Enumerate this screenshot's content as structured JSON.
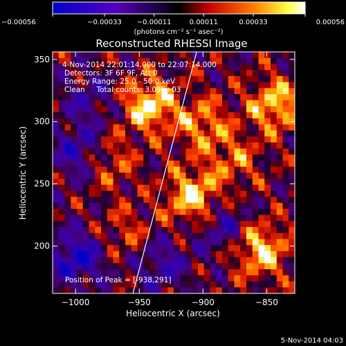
{
  "chart_data": {
    "type": "heatmap",
    "title": "Reconstructed RHESSI Image",
    "xlabel": "Heliocentric X (arcsec)",
    "ylabel": "Heliocentric Y (arcsec)",
    "xlim": [
      -1018,
      -828
    ],
    "ylim": [
      162,
      356
    ],
    "x_ticks": [
      -1000,
      -950,
      -900,
      -850
    ],
    "y_ticks": [
      200,
      250,
      300,
      350
    ],
    "x_tick_labels": [
      "−1000",
      "−950",
      "−900",
      "−850"
    ],
    "y_tick_labels": [
      "200",
      "250",
      "300",
      "350"
    ],
    "colorbar": {
      "ticks": [
        "−0.00056",
        "−0.00033",
        "−0.00011",
        "0.00011",
        "0.00033",
        "0.00056"
      ],
      "tick_values": [
        -0.00056,
        -0.00033,
        -0.00011,
        0.00011,
        0.00033,
        0.00056
      ],
      "range": [
        -0.00056,
        0.00056
      ],
      "unit_label": "(photons cm⁻² s⁻¹ asec⁻²)"
    },
    "annotations": {
      "time_range": "4-Nov-2014 22:01:14.000 to 22:07:14.000",
      "detectors": "Detectors: 3F 6F 9F, Att 0",
      "energy": "Energy Range: 25.0 - 50.0 keV",
      "clean": "Clean     Total counts: 3.09E+03",
      "peak": "Position of Peak = [-938,291]"
    },
    "peak": {
      "x": -938,
      "y": 291
    },
    "limb_line": {
      "x1": -955,
      "y1": 162,
      "x2": -905,
      "y2": 356
    },
    "grid": false,
    "legend": "none"
  },
  "footer": {
    "timestamp": "5-Nov-2014 04:03"
  },
  "colors": {
    "background": "#000000",
    "foreground": "#ffffff",
    "colormap": [
      "#0000c8",
      "#6000c0",
      "#ff0000",
      "#ff9000",
      "#ffff00",
      "#ffffff"
    ]
  }
}
